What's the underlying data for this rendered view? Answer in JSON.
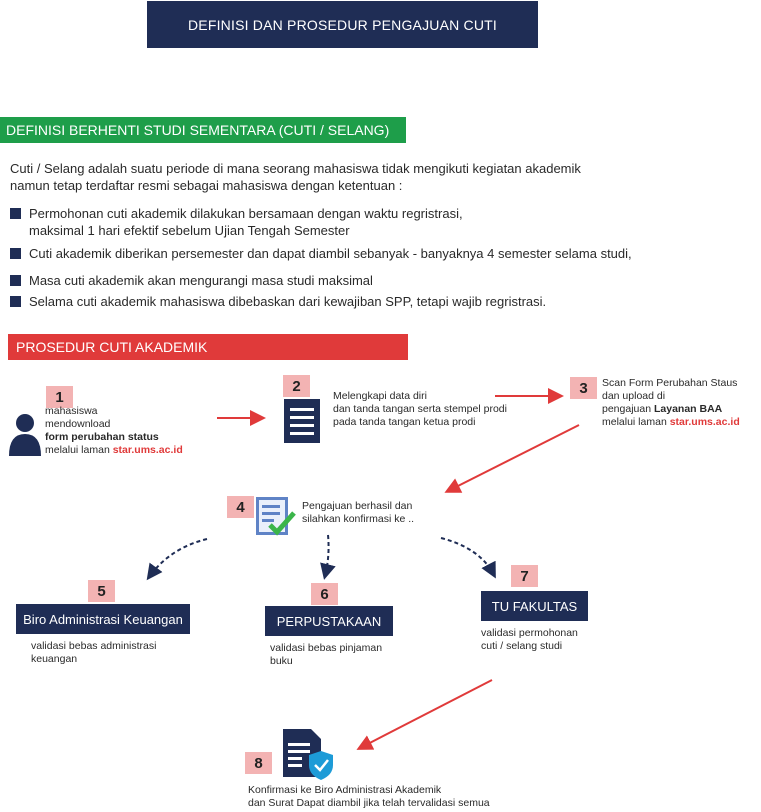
{
  "title": "DEFINISI DAN PROSEDUR PENGAJUAN CUTI",
  "definition": {
    "heading": "DEFINISI BERHENTI STUDI SEMENTARA (CUTI / SELANG)",
    "intro_line1": "Cuti / Selang adalah suatu periode di mana seorang mahasiswa tidak mengikuti kegiatan akademik",
    "intro_line2": "namun tetap terdaftar resmi sebagai mahasiswa dengan ketentuan :",
    "bullets": [
      "Permohonan cuti akademik dilakukan bersamaan dengan waktu regristrasi,",
      "maksimal 1 hari efektif sebelum Ujian Tengah Semester",
      "Cuti akademik diberikan persemester dan dapat diambil sebanyak - banyaknya 4 semester selama studi,",
      "Masa cuti akademik akan mengurangi masa studi maksimal",
      "Selama cuti akademik mahasiswa dibebaskan dari kewajiban SPP, tetapi wajib regristrasi."
    ]
  },
  "procedure": {
    "heading": "PROSEDUR CUTI AKADEMIK",
    "steps": {
      "s1": {
        "num": "1",
        "l1": "mahasiswa",
        "l2": "mendownload",
        "l3_bold": "form perubahan status",
        "l4": "melalui laman",
        "link": "star.ums.ac.id"
      },
      "s2": {
        "num": "2",
        "l1": "Melengkapi data diri",
        "l2": "dan tanda tangan serta stempel prodi",
        "l3": "pada tanda tangan ketua prodi"
      },
      "s3": {
        "num": "3",
        "l1": "Scan Form Perubahan Staus",
        "l2": "dan upload di",
        "l3": "pengajuan",
        "l3_bold": "Layanan BAA",
        "l4": "melalui laman",
        "link": "star.ums.ac.id"
      },
      "s4": {
        "num": "4",
        "l1": "Pengajuan berhasil dan",
        "l2": "silahkan konfirmasi ke .."
      },
      "s5": {
        "num": "5",
        "box": "Biro Administrasi Keuangan",
        "l1": "validasi bebas administrasi",
        "l2": "keuangan"
      },
      "s6": {
        "num": "6",
        "box": "PERPUSTAKAAN",
        "l1": "validasi bebas pinjaman",
        "l2": "buku"
      },
      "s7": {
        "num": "7",
        "box": "TU FAKULTAS",
        "l1": "validasi permohonan",
        "l2": "cuti / selang studi"
      },
      "s8": {
        "num": "8",
        "l1": "Konfirmasi ke Biro Administrasi Akademik",
        "l2": "dan Surat Dapat diambil jika telah tervalidasi semua"
      }
    }
  },
  "colors": {
    "navy": "#1f2d55",
    "green": "#1e9e4a",
    "red": "#e03a3a",
    "badge": "#f3b3b3",
    "accent": "#1d9bd7"
  }
}
